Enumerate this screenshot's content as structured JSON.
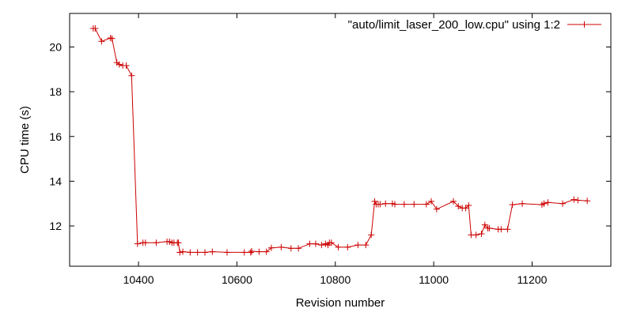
{
  "chart_data": {
    "type": "line",
    "title": "",
    "xlabel": "Revision number",
    "ylabel": "CPU time (s)",
    "xlim": [
      10260,
      11360
    ],
    "ylim": [
      10.2,
      21.5
    ],
    "xticks": [
      10400,
      10600,
      10800,
      11000,
      11200
    ],
    "yticks": [
      12,
      14,
      16,
      18,
      20
    ],
    "grid": false,
    "legend_position": "top-right",
    "series": [
      {
        "name": "\"auto/limit_laser_200_low.cpu\" using 1:2",
        "color": "#cc0000",
        "marker": "plus",
        "x": [
          10308,
          10312,
          10325,
          10343,
          10346,
          10356,
          10361,
          10368,
          10375,
          10386,
          10398,
          10409,
          10414,
          10436,
          10458,
          10463,
          10468,
          10472,
          10479,
          10481,
          10484,
          10490,
          10505,
          10520,
          10535,
          10550,
          10580,
          10615,
          10628,
          10630,
          10645,
          10660,
          10670,
          10690,
          10710,
          10725,
          10748,
          10760,
          10772,
          10780,
          10785,
          10788,
          10792,
          10806,
          10825,
          10846,
          10862,
          10873,
          10880,
          10883,
          10887,
          10891,
          10902,
          10916,
          10921,
          10940,
          10960,
          10985,
          10995,
          11006,
          11040,
          11050,
          11058,
          11065,
          11071,
          11076,
          11086,
          11097,
          11104,
          11110,
          11113,
          11131,
          11137,
          11150,
          11160,
          11180,
          11220,
          11224,
          11232,
          11262,
          11285,
          11293,
          11312
        ],
        "y": [
          20.83,
          20.83,
          20.25,
          20.4,
          20.38,
          19.3,
          19.22,
          19.17,
          19.17,
          18.72,
          11.2,
          11.25,
          11.25,
          11.25,
          11.3,
          11.3,
          11.25,
          11.25,
          11.25,
          11.25,
          10.82,
          10.85,
          10.82,
          10.82,
          10.82,
          10.85,
          10.82,
          10.82,
          10.82,
          10.87,
          10.85,
          10.85,
          11.02,
          11.05,
          11.0,
          11.0,
          11.2,
          11.2,
          11.15,
          11.2,
          11.15,
          11.25,
          11.25,
          11.05,
          11.05,
          11.15,
          11.15,
          11.6,
          13.1,
          12.97,
          12.97,
          12.97,
          13.0,
          13.0,
          12.97,
          12.97,
          12.97,
          12.97,
          13.1,
          12.75,
          13.1,
          12.88,
          12.8,
          12.8,
          12.92,
          11.6,
          11.6,
          11.65,
          12.05,
          11.9,
          11.9,
          11.85,
          11.85,
          11.85,
          12.95,
          13.0,
          12.95,
          13.0,
          13.05,
          13.0,
          13.18,
          13.15,
          13.12
        ]
      }
    ]
  }
}
